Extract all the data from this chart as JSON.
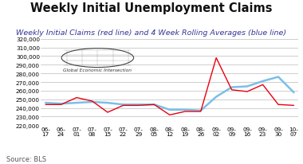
{
  "title": "Weekly Initial Unemployment Claims",
  "subtitle": "Weekly Initial Claims (red line) and 4 Week Rolling Averages (blue line)",
  "source": "Source: BLS",
  "x_labels": [
    "06-\n17",
    "06-\n24",
    "07-\n01",
    "07-\n08",
    "07-\n15",
    "07-\n22",
    "07-\n29",
    "08-\n05",
    "08-\n12",
    "08-\n19",
    "08-\n26",
    "09-\n02",
    "09-\n09",
    "09-\n16",
    "09-\n23",
    "09-\n30",
    "10-\n07"
  ],
  "red_line": [
    244000,
    244000,
    252000,
    248000,
    235000,
    243000,
    243000,
    244000,
    232000,
    236000,
    236000,
    298000,
    261000,
    259000,
    267000,
    244000,
    243000
  ],
  "blue_line": [
    246000,
    245000,
    246000,
    247000,
    246000,
    244000,
    244000,
    244000,
    238000,
    238000,
    237000,
    253000,
    264000,
    265000,
    271000,
    276000,
    258000
  ],
  "ylim": [
    220000,
    320000
  ],
  "yticks": [
    220000,
    230000,
    240000,
    250000,
    260000,
    270000,
    280000,
    290000,
    300000,
    310000,
    320000
  ],
  "red_color": "#e8000d",
  "blue_color": "#7bbfe8",
  "bg_color": "#ffffff",
  "grid_color": "#bbbbbb",
  "title_fontsize": 10.5,
  "subtitle_fontsize": 6.8,
  "source_fontsize": 6.0,
  "tick_fontsize": 5.2,
  "subtitle_color": "#333399"
}
